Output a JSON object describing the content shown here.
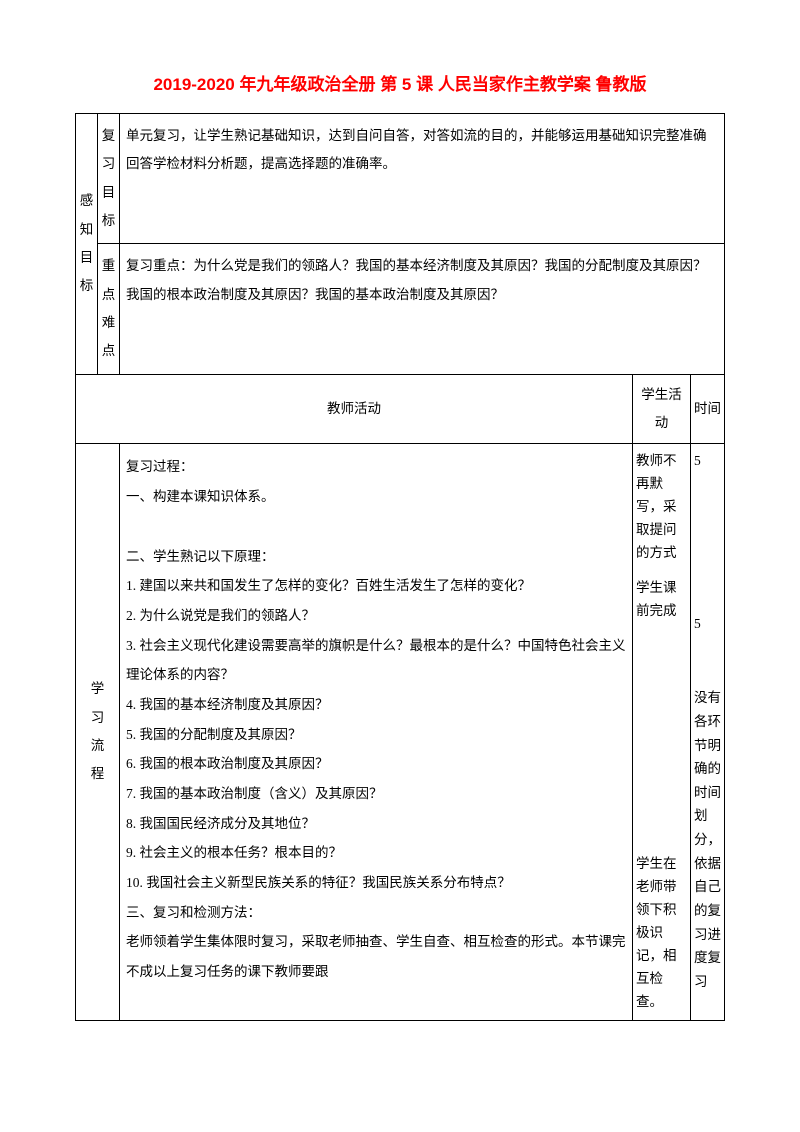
{
  "title": "2019-2020 年九年级政治全册 第 5 课 人民当家作主教学案 鲁教版",
  "row1": {
    "left": "感知目标",
    "sub1": "复习目标",
    "sub1_content": "单元复习，让学生熟记基础知识，达到自问自答，对答如流的目的，并能够运用基础知识完整准确回答学检材料分析题，提高选择题的准确率。",
    "sub2": "重点难点",
    "sub2_content": "复习重点：为什么党是我们的领路人？我国的基本经济制度及其原因？我国的分配制度及其原因？我国的根本政治制度及其原因？我国的基本政治制度及其原因？"
  },
  "header": {
    "teacher": "教师活动",
    "student": "学生活动",
    "time": "时间"
  },
  "flow": {
    "label": "学习流程",
    "activity_lines": [
      "复习过程：",
      "一、构建本课知识体系。",
      "",
      "二、学生熟记以下原理：",
      "1. 建国以来共和国发生了怎样的变化？百姓生活发生了怎样的变化？",
      "2. 为什么说党是我们的领路人？",
      "3. 社会主义现代化建设需要高举的旗帜是什么？最根本的是什么？中国特色社会主义理论体系的内容？",
      "4. 我国的基本经济制度及其原因？",
      "5. 我国的分配制度及其原因？",
      "6. 我国的根本政治制度及其原因？",
      "7. 我国的基本政治制度（含义）及其原因？",
      "8. 我国国民经济成分及其地位？",
      "9. 社会主义的根本任务？根本目的？",
      "10. 我国社会主义新型民族关系的特征？我国民族关系分布特点？",
      "三、复习和检测方法：",
      "老师领着学生集体限时复习，采取老师抽查、学生自查、相互检查的形式。本节课完不成以上复习任务的课下教师要跟"
    ],
    "student1": "教师不再默写，采取提问的方式",
    "student2": "学生课前完成",
    "student3": "学生在老师带领下积极识记，相互检查。",
    "time1": "5",
    "time2": "5",
    "time3": "没有各环节明确的时间划分，依据自己的复习进度复习"
  }
}
